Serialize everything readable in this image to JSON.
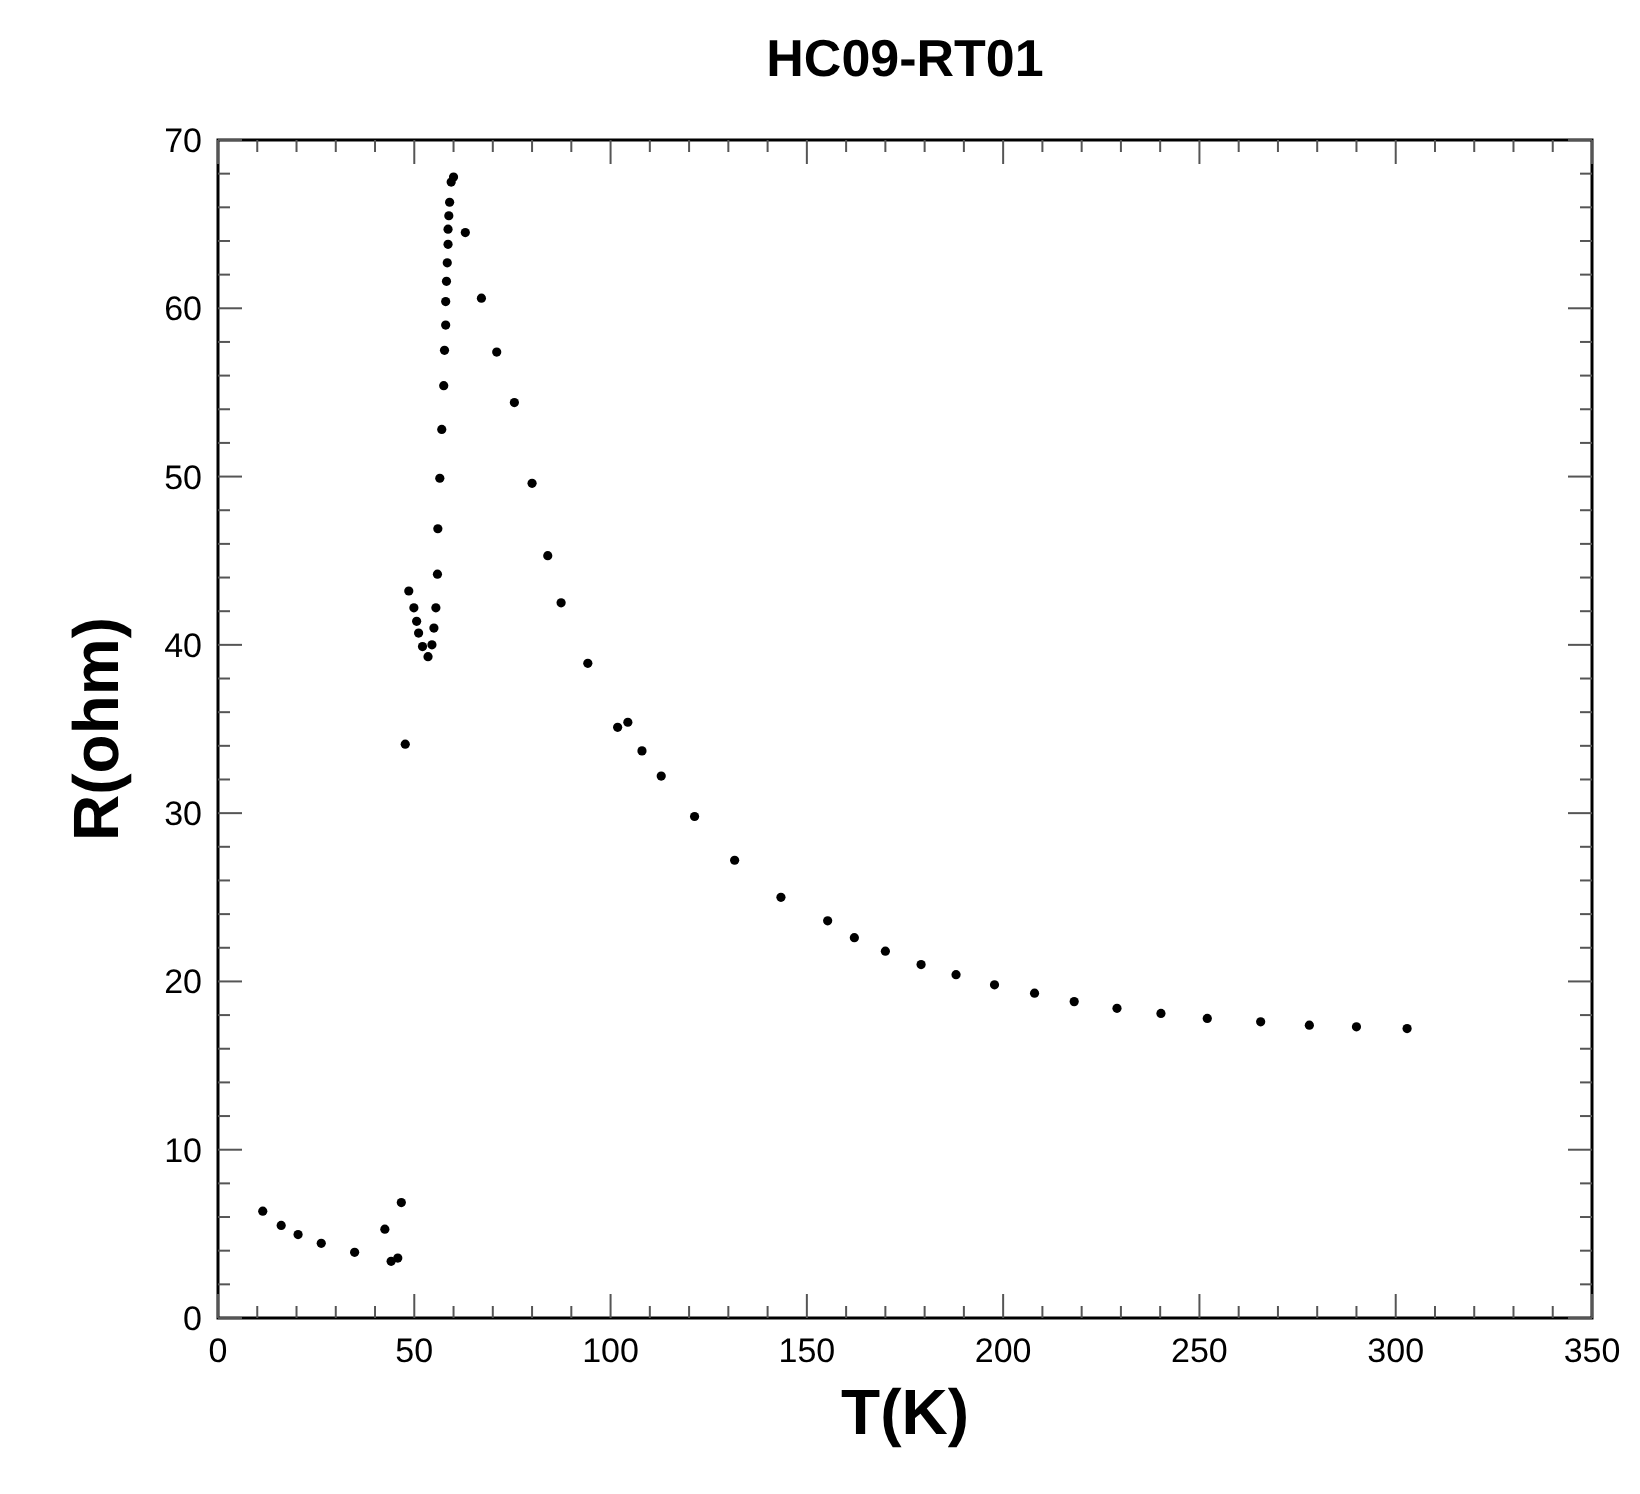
{
  "chart_data": {
    "type": "scatter",
    "title": "HC09-RT01",
    "xlabel": "T(K)",
    "ylabel": "R(ohm)",
    "xlim": [
      0,
      350
    ],
    "ylim": [
      0,
      70
    ],
    "xticks": [
      0,
      50,
      100,
      150,
      200,
      250,
      300,
      350
    ],
    "yticks": [
      0,
      10,
      20,
      30,
      40,
      50,
      60,
      70
    ],
    "grid": false,
    "marker": "circle",
    "series": [
      {
        "color": "#000000",
        "x": [
          11.4,
          16.1,
          20.4,
          26.3,
          34.8,
          44.1,
          45.8,
          42.5,
          46.7,
          47.7,
          48.6,
          49.9,
          50.6,
          51.1,
          52.1,
          53.5,
          54.5,
          55.0,
          55.5,
          55.9,
          56.0,
          56.5,
          57.0,
          57.5,
          57.7,
          58.0,
          58.0,
          58.2,
          58.4,
          58.6,
          58.6,
          58.8,
          59.0,
          59.4,
          60.0,
          63.0,
          67.1,
          71.0,
          75.5,
          80.0,
          84.0,
          87.4,
          94.2,
          101.8,
          104.4,
          108.0,
          112.9,
          121.4,
          131.6,
          143.4,
          155.3,
          162.1,
          170.0,
          179.1,
          188.0,
          197.8,
          208.0,
          218.1,
          229.0,
          240.2,
          252.0,
          265.6,
          278.0,
          290.0,
          302.9
        ],
        "values": [
          6.35,
          5.5,
          4.96,
          4.44,
          3.9,
          3.37,
          3.56,
          5.28,
          6.86,
          34.1,
          43.2,
          42.2,
          41.4,
          40.7,
          39.9,
          39.3,
          40.0,
          41.0,
          42.2,
          44.2,
          46.9,
          49.9,
          52.8,
          55.4,
          57.5,
          59.0,
          60.4,
          61.6,
          62.7,
          63.8,
          64.7,
          65.5,
          66.3,
          67.5,
          67.8,
          64.5,
          60.6,
          57.4,
          54.4,
          49.6,
          45.3,
          42.5,
          38.9,
          35.1,
          35.4,
          33.7,
          32.2,
          29.8,
          27.2,
          25.0,
          23.6,
          22.6,
          21.8,
          21.0,
          20.4,
          19.8,
          19.3,
          18.8,
          18.4,
          18.1,
          17.8,
          17.6,
          17.4,
          17.3,
          17.2
        ]
      }
    ]
  }
}
